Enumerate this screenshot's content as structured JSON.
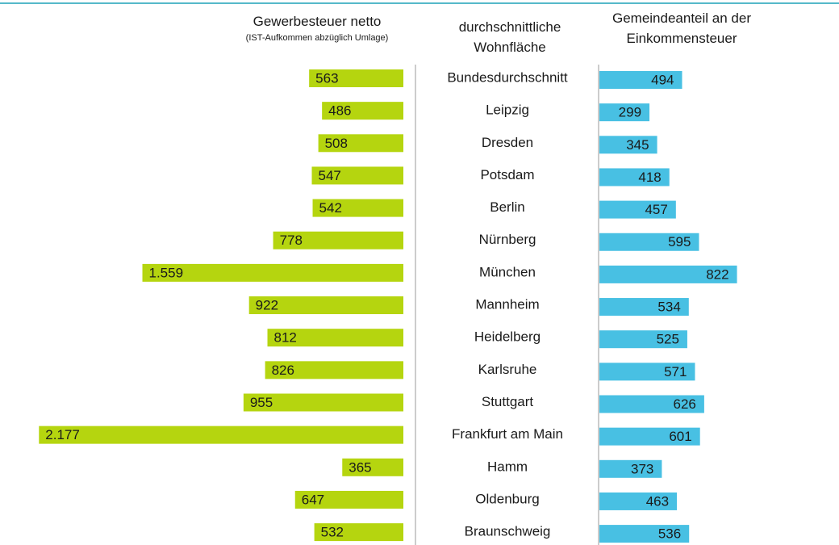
{
  "chart_data": {
    "type": "butterfly-bar",
    "category_label": "durchschnittliche Wohnfläche",
    "subtitle": "(IST-Aufkommen abzüglich Umlage)",
    "categories": [
      "Bundesdurchschnitt",
      "Leipzig",
      "Dresden",
      "Potsdam",
      "Berlin",
      "Nürnberg",
      "München",
      "Mannheim",
      "Heidelberg",
      "Karlsruhe",
      "Stuttgart",
      "Frankfurt am Main",
      "Hamm",
      "Oldenburg",
      "Braunschweig"
    ],
    "series": [
      {
        "name": "Gewerbesteuer netto",
        "color": "#b5d50f",
        "values": [
          563,
          486,
          508,
          547,
          542,
          778,
          1559,
          922,
          812,
          826,
          955,
          2177,
          365,
          647,
          532
        ],
        "value_labels": [
          "563",
          "486",
          "508",
          "547",
          "542",
          "778",
          "1.559",
          "922",
          "812",
          "826",
          "955",
          "2.177",
          "365",
          "647",
          "532"
        ]
      },
      {
        "name": "Gemeindeanteil an der Einkommensteuer",
        "color": "#48c0e3",
        "values": [
          494,
          299,
          345,
          418,
          457,
          595,
          822,
          534,
          525,
          571,
          626,
          601,
          373,
          463,
          536
        ]
      }
    ]
  }
}
